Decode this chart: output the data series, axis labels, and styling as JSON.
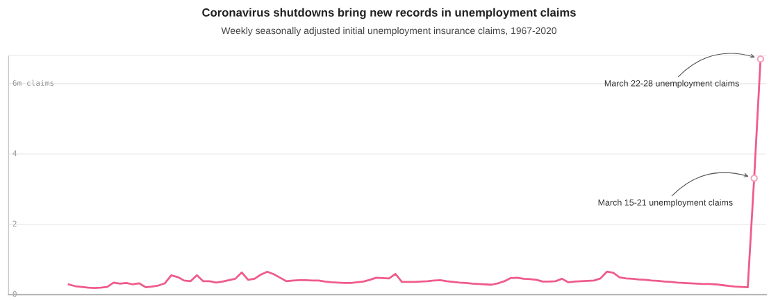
{
  "chart_data": {
    "type": "line",
    "title": "Coronavirus shutdowns bring new records in unemployment claims",
    "subtitle": "Weekly seasonally adjusted initial unemployment insurance claims, 1967-2020",
    "categories": [
      null,
      null,
      null,
      null,
      null,
      null,
      null,
      null,
      null,
      null,
      null,
      null,
      null,
      null,
      null,
      null,
      null,
      null,
      null,
      null,
      null,
      null,
      null,
      null,
      null,
      null,
      null,
      null,
      null,
      null,
      null,
      null,
      null,
      null,
      null,
      null,
      null,
      null,
      null,
      null,
      null,
      null,
      null,
      null,
      null,
      null,
      null,
      null,
      null,
      null,
      null,
      null,
      null,
      null,
      null,
      null,
      null,
      null,
      null,
      null,
      null,
      null,
      null,
      null,
      null,
      null,
      null,
      null,
      null,
      null,
      null,
      null,
      null,
      null,
      null,
      null,
      null,
      null,
      null,
      null,
      null,
      null,
      null,
      null,
      null,
      null,
      null,
      null,
      null,
      null,
      null,
      null,
      null,
      null,
      null,
      null,
      null,
      null,
      null,
      null,
      null,
      null,
      null,
      null,
      null,
      null,
      null,
      null,
      null
    ],
    "series": [
      {
        "color": "#ef5b8a",
        "values": [
          0.29,
          0.24,
          0.22,
          0.2,
          0.19,
          0.2,
          0.22,
          0.34,
          0.31,
          0.33,
          0.29,
          0.32,
          0.21,
          0.23,
          0.26,
          0.32,
          0.55,
          0.5,
          0.4,
          0.38,
          0.55,
          0.38,
          0.38,
          0.34,
          0.37,
          0.41,
          0.45,
          0.63,
          0.42,
          0.45,
          0.57,
          0.65,
          0.58,
          0.48,
          0.38,
          0.4,
          0.41,
          0.41,
          0.4,
          0.4,
          0.37,
          0.35,
          0.34,
          0.33,
          0.33,
          0.35,
          0.37,
          0.42,
          0.48,
          0.47,
          0.46,
          0.59,
          0.36,
          0.36,
          0.36,
          0.37,
          0.38,
          0.4,
          0.41,
          0.38,
          0.36,
          0.34,
          0.33,
          0.31,
          0.3,
          0.29,
          0.28,
          0.32,
          0.38,
          0.47,
          0.48,
          0.45,
          0.44,
          0.42,
          0.37,
          0.37,
          0.38,
          0.45,
          0.35,
          0.37,
          0.38,
          0.39,
          0.4,
          0.46,
          0.65,
          0.62,
          0.49,
          0.46,
          0.45,
          0.43,
          0.42,
          0.4,
          0.39,
          0.37,
          0.36,
          0.34,
          0.33,
          0.32,
          0.31,
          0.3,
          0.3,
          0.29,
          0.27,
          0.25,
          0.23,
          0.22,
          0.21,
          3.31,
          6.7
        ]
      }
    ],
    "ylim": [
      0,
      6.8
    ],
    "yticks": [
      0,
      2,
      4,
      {
        "value": 6,
        "label": "6m claims"
      }
    ],
    "grid": "y",
    "line_style": "solid",
    "annotations": [
      "March 22-28 unemployment claims",
      "March 15-21 unemployment claims"
    ]
  }
}
